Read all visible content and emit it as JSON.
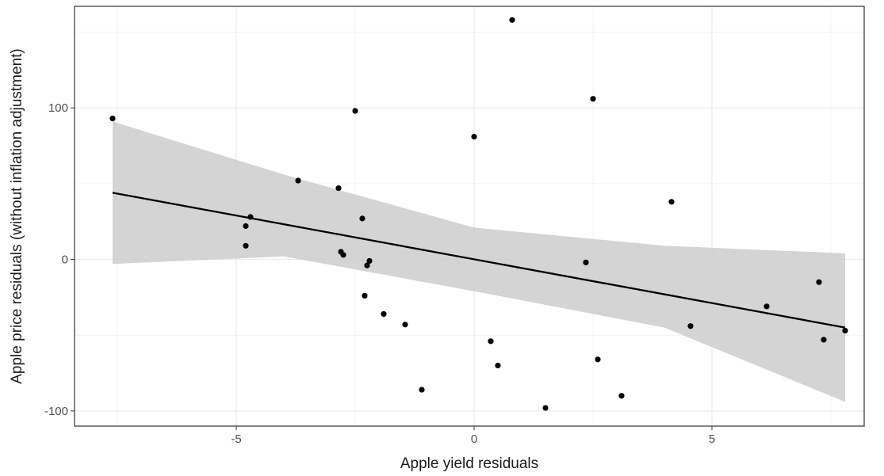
{
  "chart_data": {
    "type": "scatter",
    "title": "",
    "xlabel": "Apple yield residuals",
    "ylabel": "Apple price residuals (without inflation adjustment)",
    "xlim": [
      -8.4,
      8.2
    ],
    "ylim": [
      -110,
      167
    ],
    "x_ticks": [
      {
        "value": -5,
        "label": "-5"
      },
      {
        "value": 0,
        "label": "0"
      },
      {
        "value": 5,
        "label": "5"
      }
    ],
    "y_ticks": [
      {
        "value": -100,
        "label": "-100"
      },
      {
        "value": 0,
        "label": "0"
      },
      {
        "value": 100,
        "label": "100"
      }
    ],
    "grid": true,
    "theme": "bw",
    "points": [
      {
        "x": -7.6,
        "y": 93
      },
      {
        "x": 0.8,
        "y": 158
      },
      {
        "x": 2.5,
        "y": 106
      },
      {
        "x": -2.5,
        "y": 98
      },
      {
        "x": 0.0,
        "y": 81
      },
      {
        "x": -3.7,
        "y": 52
      },
      {
        "x": -2.85,
        "y": 47
      },
      {
        "x": 4.15,
        "y": 38
      },
      {
        "x": -4.7,
        "y": 28
      },
      {
        "x": -2.35,
        "y": 27
      },
      {
        "x": -4.8,
        "y": 22
      },
      {
        "x": -4.8,
        "y": 9
      },
      {
        "x": -2.8,
        "y": 5
      },
      {
        "x": -2.75,
        "y": 3
      },
      {
        "x": -2.2,
        "y": -1
      },
      {
        "x": 2.35,
        "y": -2
      },
      {
        "x": -2.25,
        "y": -4
      },
      {
        "x": 7.25,
        "y": -15
      },
      {
        "x": -2.3,
        "y": -24
      },
      {
        "x": 6.15,
        "y": -31
      },
      {
        "x": -1.9,
        "y": -36
      },
      {
        "x": -1.45,
        "y": -43
      },
      {
        "x": 4.55,
        "y": -44
      },
      {
        "x": 7.8,
        "y": -47
      },
      {
        "x": 7.35,
        "y": -53
      },
      {
        "x": 0.35,
        "y": -54
      },
      {
        "x": 2.6,
        "y": -66
      },
      {
        "x": 0.5,
        "y": -70
      },
      {
        "x": -1.1,
        "y": -86
      },
      {
        "x": 3.1,
        "y": -90
      },
      {
        "x": 1.5,
        "y": -98
      }
    ],
    "fit_line": {
      "x": [
        -7.6,
        7.8
      ],
      "y": [
        44,
        -45
      ]
    },
    "confidence_band": {
      "x": [
        -7.6,
        -4,
        0,
        4,
        7.8
      ],
      "upper": [
        91,
        56,
        21,
        9,
        4
      ],
      "lower": [
        -3,
        2,
        -21,
        -45,
        -94
      ]
    },
    "colors": {
      "points": "#000000",
      "fit_line": "#000000",
      "band": "#cccccc",
      "grid": "#ebebeb",
      "panel_border": "#333333"
    }
  }
}
